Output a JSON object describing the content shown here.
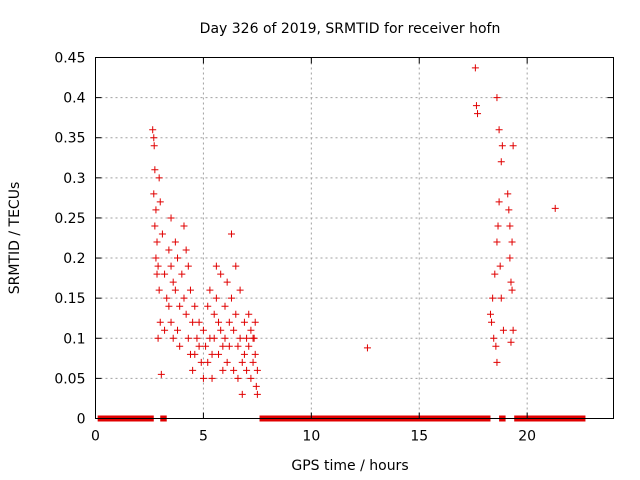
{
  "chart_data": {
    "type": "scatter",
    "title": "Day 326 of 2019, SRMTID for receiver hofn",
    "xlabel": "GPS time / hours",
    "ylabel": "SRMTID / TECUs",
    "xlim": [
      0,
      24
    ],
    "ylim": [
      0,
      0.45
    ],
    "xticks": [
      0,
      5,
      10,
      15,
      20
    ],
    "xtick_labels": [
      "0",
      "5",
      "10",
      "15",
      "20"
    ],
    "yticks": [
      0,
      0.05,
      0.1,
      0.15,
      0.2,
      0.25,
      0.3,
      0.35,
      0.4,
      0.45
    ],
    "ytick_labels": [
      "0",
      "0.05",
      "0.1",
      "0.15",
      "0.2",
      "0.25",
      "0.3",
      "0.35",
      "0.4",
      "0.45"
    ],
    "grid": true,
    "marker": "+",
    "color": "#e00000",
    "baseline_segments": [
      [
        0.1,
        2.7
      ],
      [
        3.0,
        3.3
      ],
      [
        7.6,
        18.3
      ],
      [
        18.7,
        19.0
      ],
      [
        19.4,
        22.7
      ]
    ],
    "series": [
      {
        "name": "SRMTID",
        "points": [
          [
            2.65,
            0.36
          ],
          [
            2.7,
            0.35
          ],
          [
            2.72,
            0.34
          ],
          [
            2.75,
            0.31
          ],
          [
            2.7,
            0.28
          ],
          [
            2.8,
            0.26
          ],
          [
            2.75,
            0.24
          ],
          [
            2.85,
            0.22
          ],
          [
            2.8,
            0.2
          ],
          [
            2.9,
            0.19
          ],
          [
            2.95,
            0.3
          ],
          [
            3.0,
            0.27
          ],
          [
            2.85,
            0.18
          ],
          [
            2.95,
            0.16
          ],
          [
            3.0,
            0.12
          ],
          [
            2.9,
            0.1
          ],
          [
            3.05,
            0.055
          ],
          [
            3.1,
            0.23
          ],
          [
            3.2,
            0.18
          ],
          [
            3.3,
            0.15
          ],
          [
            3.2,
            0.11
          ],
          [
            3.4,
            0.21
          ],
          [
            3.5,
            0.25
          ],
          [
            3.5,
            0.19
          ],
          [
            3.6,
            0.17
          ],
          [
            3.4,
            0.14
          ],
          [
            3.5,
            0.12
          ],
          [
            3.6,
            0.1
          ],
          [
            3.7,
            0.22
          ],
          [
            3.8,
            0.2
          ],
          [
            3.7,
            0.16
          ],
          [
            3.9,
            0.14
          ],
          [
            3.8,
            0.11
          ],
          [
            3.9,
            0.09
          ],
          [
            4.0,
            0.18
          ],
          [
            4.1,
            0.24
          ],
          [
            4.2,
            0.21
          ],
          [
            4.1,
            0.15
          ],
          [
            4.3,
            0.19
          ],
          [
            4.2,
            0.13
          ],
          [
            4.4,
            0.16
          ],
          [
            4.3,
            0.1
          ],
          [
            4.5,
            0.12
          ],
          [
            4.4,
            0.08
          ],
          [
            4.5,
            0.06
          ],
          [
            4.6,
            0.14
          ],
          [
            4.7,
            0.1
          ],
          [
            4.6,
            0.08
          ],
          [
            4.8,
            0.12
          ],
          [
            4.8,
            0.09
          ],
          [
            4.9,
            0.07
          ],
          [
            5.0,
            0.11
          ],
          [
            5.0,
            0.05
          ],
          [
            5.1,
            0.09
          ],
          [
            5.2,
            0.14
          ],
          [
            5.2,
            0.07
          ],
          [
            5.3,
            0.16
          ],
          [
            5.3,
            0.1
          ],
          [
            5.4,
            0.08
          ],
          [
            5.4,
            0.05
          ],
          [
            5.5,
            0.13
          ],
          [
            5.5,
            0.1
          ],
          [
            5.6,
            0.19
          ],
          [
            5.6,
            0.15
          ],
          [
            5.7,
            0.12
          ],
          [
            5.7,
            0.08
          ],
          [
            5.8,
            0.18
          ],
          [
            5.8,
            0.11
          ],
          [
            5.9,
            0.09
          ],
          [
            5.9,
            0.06
          ],
          [
            6.0,
            0.14
          ],
          [
            6.0,
            0.1
          ],
          [
            6.1,
            0.17
          ],
          [
            6.1,
            0.07
          ],
          [
            6.2,
            0.12
          ],
          [
            6.2,
            0.09
          ],
          [
            6.3,
            0.23
          ],
          [
            6.3,
            0.15
          ],
          [
            6.4,
            0.11
          ],
          [
            6.4,
            0.06
          ],
          [
            6.5,
            0.19
          ],
          [
            6.5,
            0.13
          ],
          [
            6.6,
            0.09
          ],
          [
            6.6,
            0.05
          ],
          [
            6.7,
            0.16
          ],
          [
            6.7,
            0.1
          ],
          [
            6.8,
            0.07
          ],
          [
            6.8,
            0.03
          ],
          [
            6.9,
            0.12
          ],
          [
            6.9,
            0.08
          ],
          [
            7.0,
            0.1
          ],
          [
            7.0,
            0.06
          ],
          [
            7.1,
            0.13
          ],
          [
            7.1,
            0.09
          ],
          [
            7.2,
            0.11
          ],
          [
            7.2,
            0.05
          ],
          [
            7.3,
            0.1
          ],
          [
            7.3,
            0.07
          ],
          [
            7.4,
            0.12
          ],
          [
            7.4,
            0.08
          ],
          [
            7.5,
            0.06
          ],
          [
            7.5,
            0.03
          ],
          [
            7.35,
            0.1
          ],
          [
            7.45,
            0.04
          ],
          [
            12.6,
            0.088
          ],
          [
            17.6,
            0.437
          ],
          [
            17.65,
            0.39
          ],
          [
            17.7,
            0.38
          ],
          [
            18.3,
            0.13
          ],
          [
            18.35,
            0.12
          ],
          [
            18.4,
            0.15
          ],
          [
            18.45,
            0.1
          ],
          [
            18.5,
            0.18
          ],
          [
            18.55,
            0.09
          ],
          [
            18.6,
            0.22
          ],
          [
            18.6,
            0.4
          ],
          [
            18.65,
            0.24
          ],
          [
            18.7,
            0.27
          ],
          [
            18.7,
            0.36
          ],
          [
            18.75,
            0.19
          ],
          [
            18.8,
            0.32
          ],
          [
            18.8,
            0.15
          ],
          [
            18.85,
            0.34
          ],
          [
            18.9,
            0.11
          ],
          [
            18.6,
            0.07
          ],
          [
            19.1,
            0.28
          ],
          [
            19.15,
            0.26
          ],
          [
            19.2,
            0.24
          ],
          [
            19.2,
            0.2
          ],
          [
            19.25,
            0.17
          ],
          [
            19.3,
            0.22
          ],
          [
            19.3,
            0.16
          ],
          [
            19.35,
            0.34
          ],
          [
            19.35,
            0.11
          ],
          [
            19.25,
            0.095
          ],
          [
            21.3,
            0.262
          ]
        ]
      }
    ]
  }
}
